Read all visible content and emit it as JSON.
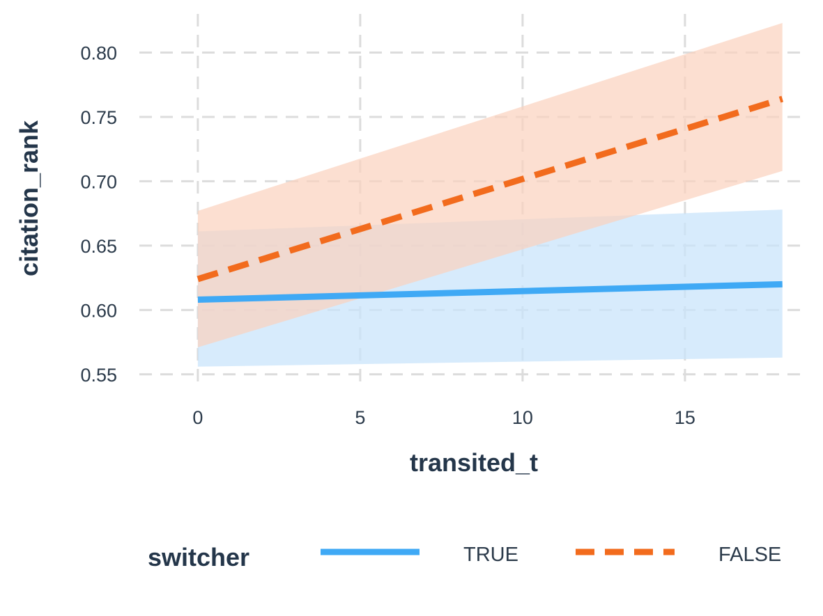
{
  "chart_data": {
    "type": "line",
    "title": "",
    "xlabel": "transited_t",
    "ylabel": "citation_rank",
    "xlim": [
      -1.8,
      18.8
    ],
    "ylim": [
      0.538,
      0.83
    ],
    "x_ticks": [
      0,
      5,
      10,
      15
    ],
    "x_tick_labels": [
      "0",
      "5",
      "10",
      "15"
    ],
    "y_ticks": [
      0.55,
      0.6,
      0.65,
      0.7,
      0.75,
      0.8
    ],
    "y_tick_labels": [
      "0.55",
      "0.60",
      "0.65",
      "0.70",
      "0.75",
      "0.80"
    ],
    "grid": true,
    "legend": {
      "title": "switcher",
      "position": "bottom"
    },
    "series": [
      {
        "name": "TRUE",
        "line_style": "solid",
        "color": "#3fa9f5",
        "band_color": "#c9e4fb",
        "x": [
          0,
          18
        ],
        "y": [
          0.608,
          0.62
        ],
        "lower": [
          0.556,
          0.563
        ],
        "upper": [
          0.661,
          0.678
        ]
      },
      {
        "name": "FALSE",
        "line_style": "dashed",
        "color": "#f26b1d",
        "band_color": "#fbd2bd",
        "x": [
          0,
          18
        ],
        "y": [
          0.624,
          0.764
        ],
        "lower": [
          0.571,
          0.708
        ],
        "upper": [
          0.677,
          0.823
        ]
      }
    ]
  }
}
